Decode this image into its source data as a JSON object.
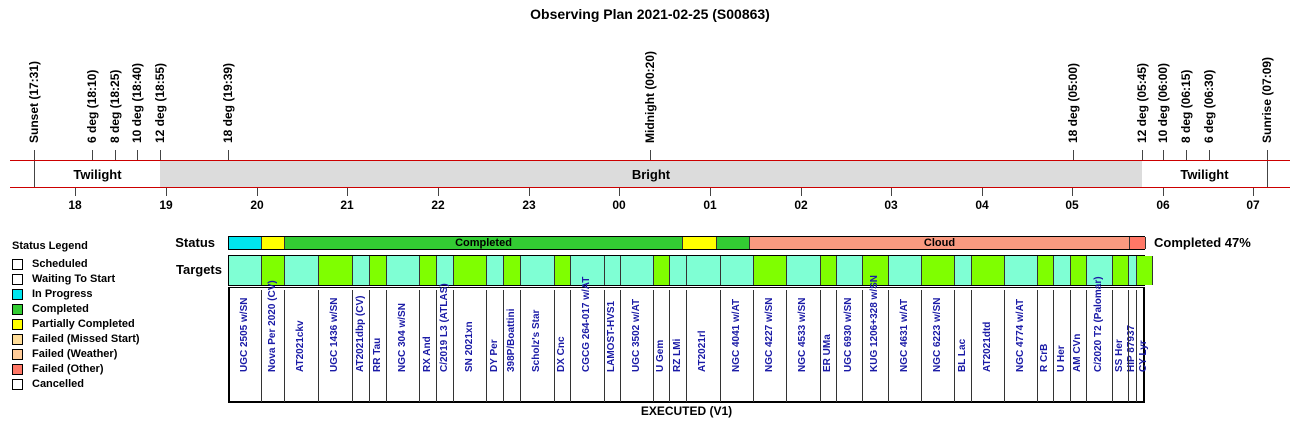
{
  "title": "Observing Plan 2021-02-25 (S00863)",
  "events": [
    {
      "label": "Sunset (17:31)"
    },
    {
      "label": "6 deg (18:10)"
    },
    {
      "label": "8 deg (18:25)"
    },
    {
      "label": "10 deg (18:40)"
    },
    {
      "label": "12 deg (18:55)"
    },
    {
      "label": "18 deg (19:39)"
    },
    {
      "label": "Midnight (00:20)"
    },
    {
      "label": "18 deg (05:00)"
    },
    {
      "label": "12 deg (05:45)"
    },
    {
      "label": "10 deg (06:00)"
    },
    {
      "label": "8 deg (06:15)"
    },
    {
      "label": "6 deg (06:30)"
    },
    {
      "label": "Sunrise (07:09)"
    }
  ],
  "bands": {
    "left": "Twilight",
    "center": "Bright",
    "right": "Twilight"
  },
  "hours": [
    "18",
    "19",
    "20",
    "21",
    "22",
    "23",
    "00",
    "01",
    "02",
    "03",
    "04",
    "05",
    "06",
    "07"
  ],
  "legend": {
    "title": "Status Legend",
    "items": [
      {
        "label": "Scheduled",
        "color": "#ffffff"
      },
      {
        "label": "Waiting To Start",
        "color": "#ffffff"
      },
      {
        "label": "In Progress",
        "color": "#00e5ee"
      },
      {
        "label": "Completed",
        "color": "#33cc33"
      },
      {
        "label": "Partially Completed",
        "color": "#ffff00"
      },
      {
        "label": "Failed (Missed Start)",
        "color": "#ffdd99"
      },
      {
        "label": "Failed (Weather)",
        "color": "#ffcc99"
      },
      {
        "label": "Failed (Other)",
        "color": "#ff7766"
      },
      {
        "label": "Cancelled",
        "color": "#ffffff"
      }
    ]
  },
  "status_label": "Status",
  "targets_label": "Targets",
  "completed_text": "Completed 47%",
  "status_segments": [
    {
      "label": "",
      "color": "#00e5ee"
    },
    {
      "label": "",
      "color": "#ffff00"
    },
    {
      "label": "Completed",
      "color": "#33cc33"
    },
    {
      "label": "",
      "color": "#ffff00"
    },
    {
      "label": "",
      "color": "#33cc33"
    },
    {
      "label": "Cloud",
      "color": "#fa9a80"
    },
    {
      "label": "",
      "color": "#ff7766"
    }
  ],
  "targets": [
    {
      "name": "UGC 2505 w/SN",
      "color": "#7fffd4"
    },
    {
      "name": "Nova Per 2020 (CV)",
      "color": "#7fff00"
    },
    {
      "name": "AT2021ckv",
      "color": "#7fffd4"
    },
    {
      "name": "UGC 1436 w/SN",
      "color": "#7fff00"
    },
    {
      "name": "AT2021dbp (CV)",
      "color": "#7fffd4"
    },
    {
      "name": "RR Tau",
      "color": "#7fff00"
    },
    {
      "name": "NGC 304 w/SN",
      "color": "#7fffd4"
    },
    {
      "name": "RX And",
      "color": "#7fff00"
    },
    {
      "name": "C/2019 L3 (ATLAS)",
      "color": "#7fffd4"
    },
    {
      "name": "SN 2021xn",
      "color": "#7fff00"
    },
    {
      "name": "DY Per",
      "color": "#7fffd4"
    },
    {
      "name": "398P/Boattini",
      "color": "#7fff00"
    },
    {
      "name": "Scholz's Star",
      "color": "#7fffd4"
    },
    {
      "name": "DX Cnc",
      "color": "#7fff00"
    },
    {
      "name": "CGCG 264-017 w/AT",
      "color": "#7fffd4"
    },
    {
      "name": "LAMOST-HVS1",
      "color": "#7fffd4"
    },
    {
      "name": "UGC 3502 w/AT",
      "color": "#7fffd4"
    },
    {
      "name": "U Gem",
      "color": "#7fff00"
    },
    {
      "name": "RZ LMi",
      "color": "#7fffd4"
    },
    {
      "name": "AT2021rl",
      "color": "#7fffd4"
    },
    {
      "name": "NGC 4041 w/AT",
      "color": "#7fffd4"
    },
    {
      "name": "NGC 4227 w/SN",
      "color": "#7fff00"
    },
    {
      "name": "NGC 4533 w/SN",
      "color": "#7fffd4"
    },
    {
      "name": "ER UMa",
      "color": "#7fff00"
    },
    {
      "name": "UGC 6930 w/SN",
      "color": "#7fffd4"
    },
    {
      "name": "KUG 1206+328 w/SN",
      "color": "#7fff00"
    },
    {
      "name": "NGC 4631 w/AT",
      "color": "#7fffd4"
    },
    {
      "name": "NGC 6223 w/SN",
      "color": "#7fff00"
    },
    {
      "name": "BL Lac",
      "color": "#7fffd4"
    },
    {
      "name": "AT2021dtd",
      "color": "#7fff00"
    },
    {
      "name": "NGC 4774 w/AT",
      "color": "#7fffd4"
    },
    {
      "name": "R CrB",
      "color": "#7fff00"
    },
    {
      "name": "U Her",
      "color": "#7fffd4"
    },
    {
      "name": "AM CVn",
      "color": "#7fff00"
    },
    {
      "name": "C/2020 T2 (Palomar)",
      "color": "#7fffd4"
    },
    {
      "name": "SS Her",
      "color": "#7fff00"
    },
    {
      "name": "HIP 87937",
      "color": "#7fffd4"
    },
    {
      "name": "CY Lyr",
      "color": "#7fff00"
    }
  ],
  "footer": "EXECUTED (V1)"
}
